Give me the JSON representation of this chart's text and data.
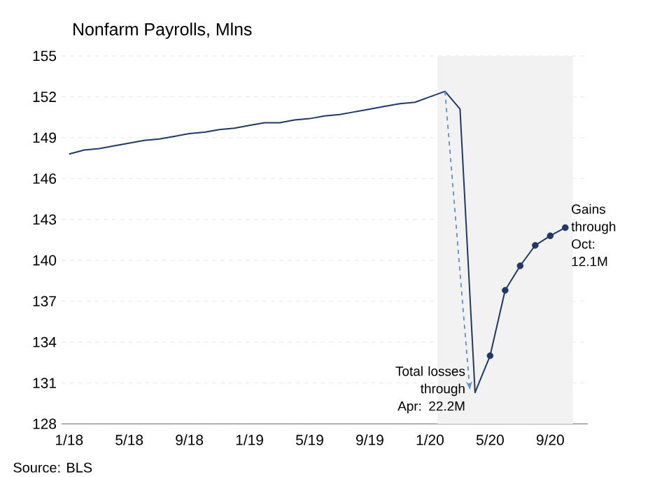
{
  "chart_data": {
    "type": "line",
    "title": "Nonfarm Payrolls, Mlns",
    "x": [
      "2018-01",
      "2018-02",
      "2018-03",
      "2018-04",
      "2018-05",
      "2018-06",
      "2018-07",
      "2018-08",
      "2018-09",
      "2018-10",
      "2018-11",
      "2018-12",
      "2019-01",
      "2019-02",
      "2019-03",
      "2019-04",
      "2019-05",
      "2019-06",
      "2019-07",
      "2019-08",
      "2019-09",
      "2019-10",
      "2019-11",
      "2019-12",
      "2020-01",
      "2020-02",
      "2020-03",
      "2020-04",
      "2020-05",
      "2020-06",
      "2020-07",
      "2020-08",
      "2020-09",
      "2020-10"
    ],
    "series": [
      {
        "color": "#1f3864",
        "marker": "none",
        "values": [
          147.8,
          148.1,
          148.2,
          148.4,
          148.6,
          148.8,
          148.9,
          149.1,
          149.3,
          149.4,
          149.6,
          149.7,
          149.9,
          150.1,
          150.1,
          150.3,
          150.4,
          150.6,
          150.7,
          150.9,
          151.1,
          151.3,
          151.5,
          151.6,
          152.0,
          152.4,
          151.1,
          130.3,
          133.0,
          137.8,
          139.6,
          141.1,
          141.8,
          142.4
        ]
      },
      {
        "type": "scatter",
        "color": "#1f3864",
        "marker": "circle",
        "x": [
          "2020-05",
          "2020-06",
          "2020-07",
          "2020-08",
          "2020-09",
          "2020-10"
        ],
        "values": [
          133.0,
          137.8,
          139.6,
          141.1,
          141.8,
          142.4
        ]
      }
    ],
    "xlim": [
      "2017-12-16",
      "2020-11-16"
    ],
    "xticks": [
      {
        "value": "2018-01",
        "label": "1/18"
      },
      {
        "value": "2018-05",
        "label": "5/18"
      },
      {
        "value": "2018-09",
        "label": "9/18"
      },
      {
        "value": "2019-01",
        "label": "1/19"
      },
      {
        "value": "2019-05",
        "label": "5/19"
      },
      {
        "value": "2019-09",
        "label": "9/19"
      },
      {
        "value": "2020-01",
        "label": "1/20"
      },
      {
        "value": "2020-05",
        "label": "5/20"
      },
      {
        "value": "2020-09",
        "label": "9/20"
      }
    ],
    "ylim": [
      128,
      155
    ],
    "yticks": [
      128,
      131,
      134,
      137,
      140,
      143,
      146,
      149,
      152,
      155
    ],
    "grid": "y",
    "bands": [
      {
        "axis": "x",
        "from": "2020-01-16",
        "to": "2020-10-16",
        "color": "#f2f2f2"
      }
    ],
    "annotations": [
      {
        "text": "Total losses through Apr: 22.2M",
        "x": "2020-04",
        "y": 130.3
      },
      {
        "text": "Gains through Oct: 12.1M",
        "x": "2020-10",
        "y": 142.4
      },
      "Source: BLS"
    ]
  }
}
